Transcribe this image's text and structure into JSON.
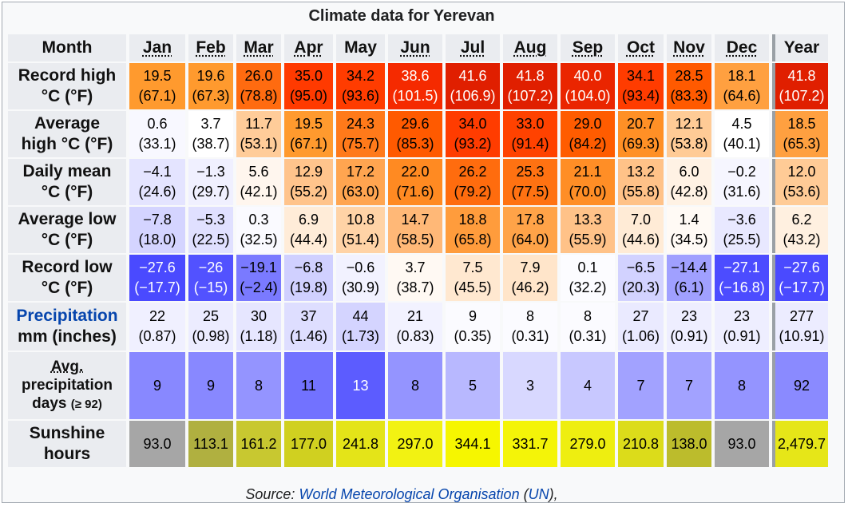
{
  "caption": "Climate data for Yerevan",
  "header": {
    "month_label": "Month",
    "months": [
      "Jan",
      "Feb",
      "Mar",
      "Apr",
      "May",
      "Jun",
      "Jul",
      "Aug",
      "Sep",
      "Oct",
      "Nov",
      "Dec"
    ],
    "year_label": "Year"
  },
  "rows": [
    {
      "label_1": "Record high",
      "label_2": "°C (°F)",
      "cells": [
        {
          "c": "19.5",
          "f": "(67.1)",
          "bg": "#ff9a2e",
          "fg": "#000000"
        },
        {
          "c": "19.6",
          "f": "(67.3)",
          "bg": "#ff9a2e",
          "fg": "#000000"
        },
        {
          "c": "26.0",
          "f": "(78.8)",
          "bg": "#ff6b10",
          "fg": "#000000"
        },
        {
          "c": "35.0",
          "f": "(95.0)",
          "bg": "#ff3a00",
          "fg": "#000000"
        },
        {
          "c": "34.2",
          "f": "(93.6)",
          "bg": "#ff3c00",
          "fg": "#000000"
        },
        {
          "c": "38.6",
          "f": "(101.5)",
          "bg": "#f52a00",
          "fg": "#ffffff"
        },
        {
          "c": "41.6",
          "f": "(106.9)",
          "bg": "#e01f00",
          "fg": "#ffffff"
        },
        {
          "c": "41.8",
          "f": "(107.2)",
          "bg": "#e01f00",
          "fg": "#ffffff"
        },
        {
          "c": "40.0",
          "f": "(104.0)",
          "bg": "#ea2500",
          "fg": "#ffffff"
        },
        {
          "c": "34.1",
          "f": "(93.4)",
          "bg": "#ff3c00",
          "fg": "#000000"
        },
        {
          "c": "28.5",
          "f": "(83.3)",
          "bg": "#ff5a00",
          "fg": "#000000"
        },
        {
          "c": "18.1",
          "f": "(64.6)",
          "bg": "#ffa040",
          "fg": "#000000"
        }
      ],
      "year": {
        "c": "41.8",
        "f": "(107.2)",
        "bg": "#e01f00",
        "fg": "#ffffff"
      }
    },
    {
      "label_1": "Average",
      "label_2": "high °C (°F)",
      "cells": [
        {
          "c": "0.6",
          "f": "(33.1)",
          "bg": "#f8f8ff",
          "fg": "#000000"
        },
        {
          "c": "3.7",
          "f": "(38.7)",
          "bg": "#ffffff",
          "fg": "#000000"
        },
        {
          "c": "11.7",
          "f": "(53.1)",
          "bg": "#ffcc99",
          "fg": "#000000"
        },
        {
          "c": "19.5",
          "f": "(67.1)",
          "bg": "#ff9a2e",
          "fg": "#000000"
        },
        {
          "c": "24.3",
          "f": "(75.7)",
          "bg": "#ff7a1a",
          "fg": "#000000"
        },
        {
          "c": "29.6",
          "f": "(85.3)",
          "bg": "#ff5a00",
          "fg": "#000000"
        },
        {
          "c": "34.0",
          "f": "(93.2)",
          "bg": "#ff3c00",
          "fg": "#000000"
        },
        {
          "c": "33.0",
          "f": "(91.4)",
          "bg": "#ff4200",
          "fg": "#000000"
        },
        {
          "c": "29.0",
          "f": "(84.2)",
          "bg": "#ff5c00",
          "fg": "#000000"
        },
        {
          "c": "20.7",
          "f": "(69.3)",
          "bg": "#ff9026",
          "fg": "#000000"
        },
        {
          "c": "12.1",
          "f": "(53.8)",
          "bg": "#ffcb96",
          "fg": "#000000"
        },
        {
          "c": "4.5",
          "f": "(40.1)",
          "bg": "#ffffff",
          "fg": "#000000"
        }
      ],
      "year": {
        "c": "18.5",
        "f": "(65.3)",
        "bg": "#ffa040",
        "fg": "#000000"
      }
    },
    {
      "label_1": "Daily mean",
      "label_2": "°C (°F)",
      "cells": [
        {
          "c": "−4.1",
          "f": "(24.6)",
          "bg": "#e4e4ff",
          "fg": "#000000"
        },
        {
          "c": "−1.3",
          "f": "(29.7)",
          "bg": "#f0f0ff",
          "fg": "#000000"
        },
        {
          "c": "5.6",
          "f": "(42.1)",
          "bg": "#fff6ee",
          "fg": "#000000"
        },
        {
          "c": "12.9",
          "f": "(55.2)",
          "bg": "#ffc48c",
          "fg": "#000000"
        },
        {
          "c": "17.2",
          "f": "(63.0)",
          "bg": "#ffa550",
          "fg": "#000000"
        },
        {
          "c": "22.0",
          "f": "(71.6)",
          "bg": "#ff8a22",
          "fg": "#000000"
        },
        {
          "c": "26.2",
          "f": "(79.2)",
          "bg": "#ff6c0e",
          "fg": "#000000"
        },
        {
          "c": "25.3",
          "f": "(77.5)",
          "bg": "#ff7212",
          "fg": "#000000"
        },
        {
          "c": "21.1",
          "f": "(70.0)",
          "bg": "#ff8e26",
          "fg": "#000000"
        },
        {
          "c": "13.2",
          "f": "(55.8)",
          "bg": "#ffc288",
          "fg": "#000000"
        },
        {
          "c": "6.0",
          "f": "(42.8)",
          "bg": "#fff2e4",
          "fg": "#000000"
        },
        {
          "c": "−0.2",
          "f": "(31.6)",
          "bg": "#f6f6ff",
          "fg": "#000000"
        }
      ],
      "year": {
        "c": "12.0",
        "f": "(53.6)",
        "bg": "#ffcb96",
        "fg": "#000000"
      }
    },
    {
      "label_1": "Average low",
      "label_2": "°C (°F)",
      "cells": [
        {
          "c": "−7.8",
          "f": "(18.0)",
          "bg": "#d4d4ff",
          "fg": "#000000"
        },
        {
          "c": "−5.3",
          "f": "(22.5)",
          "bg": "#e0e0ff",
          "fg": "#000000"
        },
        {
          "c": "0.3",
          "f": "(32.5)",
          "bg": "#fafaff",
          "fg": "#000000"
        },
        {
          "c": "6.9",
          "f": "(44.4)",
          "bg": "#ffecd8",
          "fg": "#000000"
        },
        {
          "c": "10.8",
          "f": "(51.4)",
          "bg": "#ffd3a6",
          "fg": "#000000"
        },
        {
          "c": "14.7",
          "f": "(58.5)",
          "bg": "#ffb877",
          "fg": "#000000"
        },
        {
          "c": "18.8",
          "f": "(65.8)",
          "bg": "#ff9c3c",
          "fg": "#000000"
        },
        {
          "c": "17.8",
          "f": "(64.0)",
          "bg": "#ffa348",
          "fg": "#000000"
        },
        {
          "c": "13.3",
          "f": "(55.9)",
          "bg": "#ffc288",
          "fg": "#000000"
        },
        {
          "c": "7.0",
          "f": "(44.6)",
          "bg": "#ffebd6",
          "fg": "#000000"
        },
        {
          "c": "1.4",
          "f": "(34.5)",
          "bg": "#fffaf5",
          "fg": "#000000"
        },
        {
          "c": "−3.6",
          "f": "(25.5)",
          "bg": "#e8e8ff",
          "fg": "#000000"
        }
      ],
      "year": {
        "c": "6.2",
        "f": "(43.2)",
        "bg": "#fff0e0",
        "fg": "#000000"
      }
    },
    {
      "label_1": "Record low",
      "label_2": "°C (°F)",
      "cells": [
        {
          "c": "−27.6",
          "f": "(−17.7)",
          "bg": "#4a4aff",
          "fg": "#ffffff"
        },
        {
          "c": "−26",
          "f": "(−15)",
          "bg": "#5252ff",
          "fg": "#ffffff"
        },
        {
          "c": "−19.1",
          "f": "(−2.4)",
          "bg": "#7a7aff",
          "fg": "#000000"
        },
        {
          "c": "−6.8",
          "f": "(19.8)",
          "bg": "#d0d0ff",
          "fg": "#000000"
        },
        {
          "c": "−0.6",
          "f": "(30.9)",
          "bg": "#f2f2ff",
          "fg": "#000000"
        },
        {
          "c": "3.7",
          "f": "(38.7)",
          "bg": "#fff9f3",
          "fg": "#000000"
        },
        {
          "c": "7.5",
          "f": "(45.5)",
          "bg": "#ffe8d0",
          "fg": "#000000"
        },
        {
          "c": "7.9",
          "f": "(46.2)",
          "bg": "#ffe5ca",
          "fg": "#000000"
        },
        {
          "c": "0.1",
          "f": "(32.2)",
          "bg": "#fcfcff",
          "fg": "#000000"
        },
        {
          "c": "−6.5",
          "f": "(20.3)",
          "bg": "#d2d2ff",
          "fg": "#000000"
        },
        {
          "c": "−14.4",
          "f": "(6.1)",
          "bg": "#a0a0ff",
          "fg": "#000000"
        },
        {
          "c": "−27.1",
          "f": "(−16.8)",
          "bg": "#4c4cff",
          "fg": "#ffffff"
        }
      ],
      "year": {
        "c": "−27.6",
        "f": "(−17.7)",
        "bg": "#4a4aff",
        "fg": "#ffffff"
      }
    },
    {
      "label_1": "Precipitation",
      "label_2": "mm (inches)",
      "cells": [
        {
          "c": "22",
          "f": "(0.87)",
          "bg": "#f0f0ff",
          "fg": "#000000"
        },
        {
          "c": "25",
          "f": "(0.98)",
          "bg": "#ececff",
          "fg": "#000000"
        },
        {
          "c": "30",
          "f": "(1.18)",
          "bg": "#e6e6ff",
          "fg": "#000000"
        },
        {
          "c": "37",
          "f": "(1.46)",
          "bg": "#dedeff",
          "fg": "#000000"
        },
        {
          "c": "44",
          "f": "(1.73)",
          "bg": "#d4d4ff",
          "fg": "#000000"
        },
        {
          "c": "21",
          "f": "(0.83)",
          "bg": "#f2f2ff",
          "fg": "#000000"
        },
        {
          "c": "9",
          "f": "(0.35)",
          "bg": "#fbfbff",
          "fg": "#000000"
        },
        {
          "c": "8",
          "f": "(0.31)",
          "bg": "#fbfbff",
          "fg": "#000000"
        },
        {
          "c": "8",
          "f": "(0.31)",
          "bg": "#fbfbff",
          "fg": "#000000"
        },
        {
          "c": "27",
          "f": "(1.06)",
          "bg": "#eaeaff",
          "fg": "#000000"
        },
        {
          "c": "23",
          "f": "(0.91)",
          "bg": "#eeeeff",
          "fg": "#000000"
        },
        {
          "c": "23",
          "f": "(0.91)",
          "bg": "#eeeeff",
          "fg": "#000000"
        }
      ],
      "year": {
        "c": "277",
        "f": "(10.91)",
        "bg": "#ececff",
        "fg": "#000000"
      }
    },
    {
      "label_1": "Avg.",
      "label_2": "precipitation",
      "label_3": "days",
      "label_4": "(≥ 92)",
      "cells": [
        {
          "v": "9",
          "bg": "#8888ff",
          "fg": "#000000"
        },
        {
          "v": "9",
          "bg": "#8888ff",
          "fg": "#000000"
        },
        {
          "v": "8",
          "bg": "#9494ff",
          "fg": "#000000"
        },
        {
          "v": "11",
          "bg": "#7272ff",
          "fg": "#000000"
        },
        {
          "v": "13",
          "bg": "#5c5cff",
          "fg": "#ffffff"
        },
        {
          "v": "8",
          "bg": "#9494ff",
          "fg": "#000000"
        },
        {
          "v": "5",
          "bg": "#b8b8ff",
          "fg": "#000000"
        },
        {
          "v": "3",
          "bg": "#d8d8ff",
          "fg": "#000000"
        },
        {
          "v": "4",
          "bg": "#c8c8ff",
          "fg": "#000000"
        },
        {
          "v": "7",
          "bg": "#a2a2ff",
          "fg": "#000000"
        },
        {
          "v": "7",
          "bg": "#a2a2ff",
          "fg": "#000000"
        },
        {
          "v": "8",
          "bg": "#9494ff",
          "fg": "#000000"
        }
      ],
      "year": {
        "v": "92",
        "bg": "#8a8aff",
        "fg": "#000000"
      }
    },
    {
      "label_1": "Sunshine",
      "label_2": "hours",
      "cells": [
        {
          "v": "93.0",
          "bg": "#a6a6a6",
          "fg": "#000000"
        },
        {
          "v": "113.1",
          "bg": "#b0b040",
          "fg": "#000000"
        },
        {
          "v": "161.2",
          "bg": "#c8c830",
          "fg": "#000000"
        },
        {
          "v": "177.0",
          "bg": "#d0d020",
          "fg": "#000000"
        },
        {
          "v": "241.8",
          "bg": "#e4e418",
          "fg": "#000000"
        },
        {
          "v": "297.0",
          "bg": "#f2f212",
          "fg": "#000000"
        },
        {
          "v": "344.1",
          "bg": "#f6f600",
          "fg": "#000000"
        },
        {
          "v": "331.7",
          "bg": "#f4f408",
          "fg": "#000000"
        },
        {
          "v": "279.0",
          "bg": "#eeee10",
          "fg": "#000000"
        },
        {
          "v": "210.8",
          "bg": "#dcdc1a",
          "fg": "#000000"
        },
        {
          "v": "138.0",
          "bg": "#bcbc2c",
          "fg": "#000000"
        },
        {
          "v": "93.0",
          "bg": "#a6a6a6",
          "fg": "#000000"
        }
      ],
      "year": {
        "v": "2,479.7",
        "bg": "#e6e618",
        "fg": "#000000"
      }
    }
  ],
  "source": {
    "prefix": "Source:",
    "link_text": "World Meteorological Organisation",
    "paren_open": " (",
    "un_text": "UN",
    "suffix": "),"
  }
}
